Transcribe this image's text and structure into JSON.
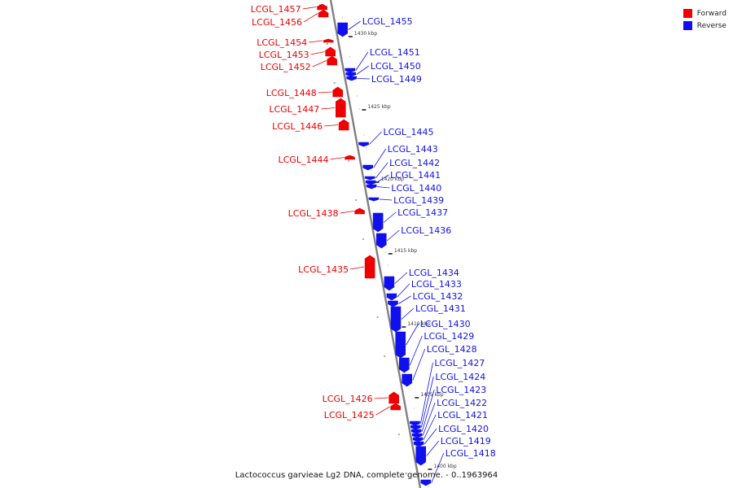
{
  "legend": {
    "forward": {
      "label": "Forward",
      "color": "#ee0000"
    },
    "reverse": {
      "label": "Reverse",
      "color": "#1010ee"
    }
  },
  "caption": "Lactococcus garvieae Lg2 DNA, complete genome. - 0..1963964",
  "backbone_color": "#808080",
  "scale_labels": [
    "1430 kbp",
    "1425 kbp",
    "1420 kbp",
    "1415 kbp",
    "1410 kbp",
    "1405 kbp",
    "1400 kbp"
  ],
  "genes_forward": [
    "LCGL_1457",
    "LCGL_1456",
    "LCGL_1454",
    "LCGL_1453",
    "LCGL_1452",
    "LCGL_1448",
    "LCGL_1447",
    "LCGL_1446",
    "LCGL_1444",
    "LCGL_1438",
    "LCGL_1435",
    "LCGL_1426",
    "LCGL_1425"
  ],
  "genes_reverse": [
    "LCGL_1455",
    "LCGL_1451",
    "LCGL_1450",
    "LCGL_1449",
    "LCGL_1445",
    "LCGL_1443",
    "LCGL_1442",
    "LCGL_1441",
    "LCGL_1440",
    "LCGL_1439",
    "LCGL_1437",
    "LCGL_1436",
    "LCGL_1434",
    "LCGL_1433",
    "LCGL_1432",
    "LCGL_1431",
    "LCGL_1430",
    "LCGL_1429",
    "LCGL_1428",
    "LCGL_1427",
    "LCGL_1424",
    "LCGL_1423",
    "LCGL_1422",
    "LCGL_1421",
    "LCGL_1420",
    "LCGL_1419",
    "LCGL_1418"
  ]
}
